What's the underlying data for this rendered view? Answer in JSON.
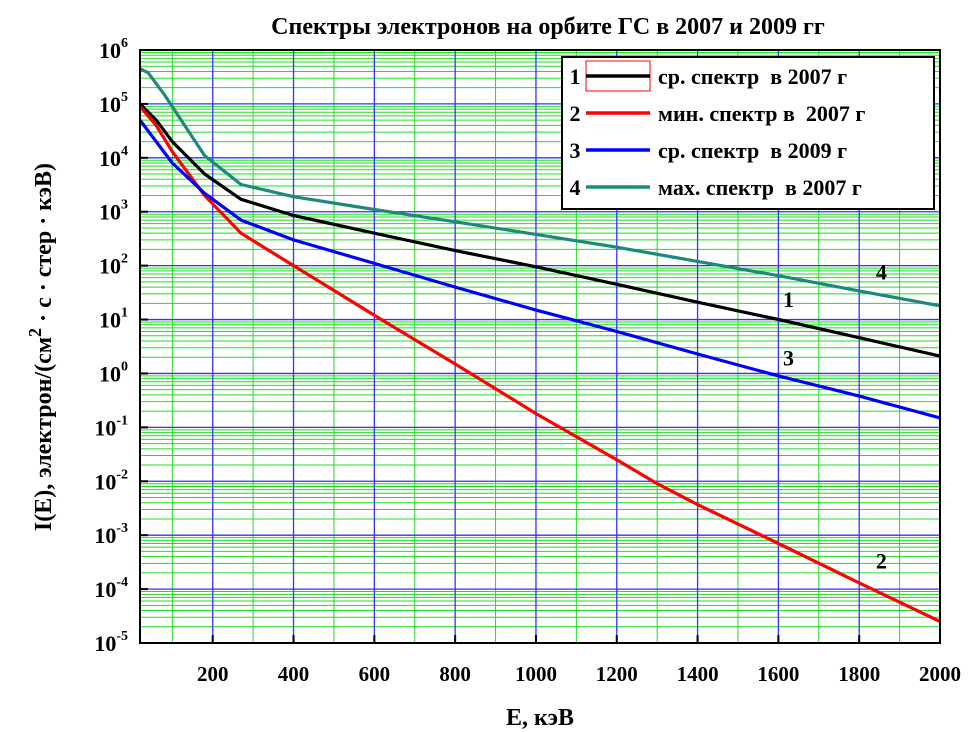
{
  "chart_data": {
    "type": "line",
    "title": "Спектры электронов на орбите ГС в 2007 и 2009 гг",
    "xlabel": "E, кэВ",
    "ylabel_main": "I(E), электрон/(см",
    "ylabel_sup": "2",
    "ylabel_tail": " · с · стер · кэВ)",
    "xlim": [
      20,
      2000
    ],
    "ylim": [
      1e-05,
      1000000.0
    ],
    "yscale": "log",
    "grid": true,
    "legend_position": "top-right",
    "x_ticks": [
      200,
      400,
      600,
      800,
      1000,
      1200,
      1400,
      1600,
      1800,
      2000
    ],
    "x_tick_labels": [
      "200",
      "400",
      "600",
      "800",
      "1000",
      "1200",
      "1400",
      "1600",
      "1800",
      "2000"
    ],
    "y_tick_exponents": [
      -5,
      -4,
      -3,
      -2,
      -1,
      0,
      1,
      2,
      3,
      4,
      5,
      6
    ],
    "y_tick_base": "10",
    "series": [
      {
        "id": "1",
        "name": "ср. спектр  в 2007 г",
        "color": "#000000",
        "curve_label": "1",
        "curve_label_at": [
          1625,
          17
        ],
        "x": [
          20,
          60,
          100,
          180,
          270,
          400,
          600,
          800,
          1000,
          1200,
          1400,
          1600,
          1800,
          2000
        ],
        "y": [
          100000,
          50000,
          20000,
          5000,
          1700,
          850,
          400,
          190,
          95,
          45,
          21,
          10,
          4.6,
          2.1
        ]
      },
      {
        "id": "2",
        "name": "мин. спектр в  2007 г",
        "color": "#ff0000",
        "curve_label": "2",
        "curve_label_at": [
          1855,
          0.00024
        ],
        "x": [
          20,
          60,
          100,
          180,
          270,
          400,
          600,
          800,
          1000,
          1200,
          1300,
          1400,
          1600,
          1800,
          2000
        ],
        "y": [
          90000,
          40000,
          13000,
          2000,
          400,
          100,
          12,
          1.5,
          0.18,
          0.025,
          0.009,
          0.0037,
          0.0007,
          0.00013,
          2.5e-05
        ]
      },
      {
        "id": "3",
        "name": "ср. спектр  в 2009 г",
        "color": "#0000ff",
        "curve_label": "3",
        "curve_label_at": [
          1625,
          1.4
        ],
        "x": [
          20,
          60,
          100,
          180,
          270,
          400,
          600,
          800,
          1000,
          1200,
          1400,
          1600,
          1800,
          2000
        ],
        "y": [
          50000,
          20000,
          8000,
          2200,
          700,
          300,
          110,
          40,
          15,
          6,
          2.3,
          0.9,
          0.38,
          0.15
        ]
      },
      {
        "id": "4",
        "name": "мах. спектр  в 2007 г",
        "color": "#1b8a7a",
        "curve_label": "4",
        "curve_label_at": [
          1855,
          55
        ],
        "x": [
          20,
          40,
          80,
          180,
          270,
          400,
          600,
          800,
          1000,
          1200,
          1400,
          1600,
          1800,
          2000
        ],
        "y": [
          450000,
          380000,
          150000,
          11000,
          3200,
          1900,
          1100,
          650,
          380,
          220,
          120,
          65,
          34,
          18
        ]
      }
    ]
  }
}
